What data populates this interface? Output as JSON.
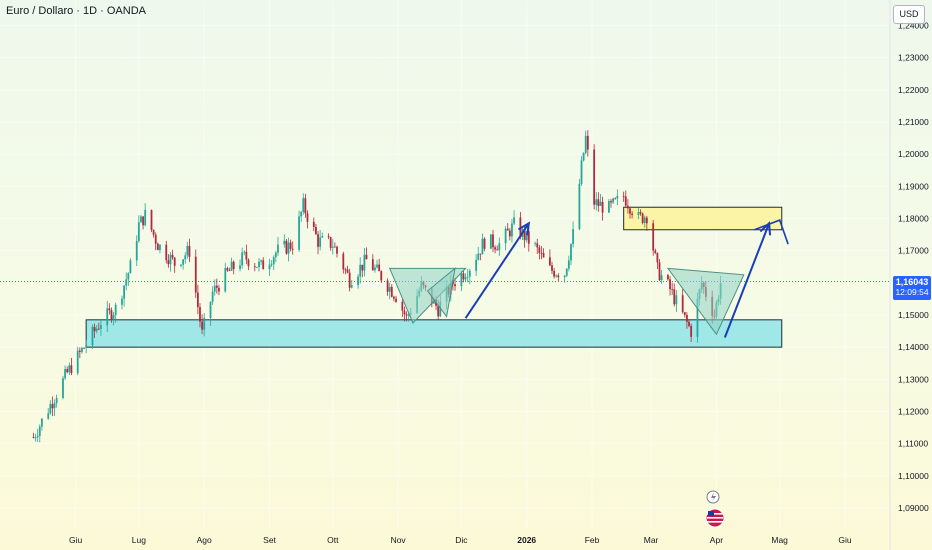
{
  "symbol": "Euro / Dollaro · 1D · OANDA",
  "currency": "USD",
  "last_price": "1,16043",
  "countdown": "12:09:54",
  "colors": {
    "up": "#26a69a",
    "down": "#b2283d",
    "support_zone": "#a0e7e7",
    "resistance_zone": "#fbf3a6",
    "arrow": "#1a3fb5",
    "triangle": "#8fd4c4",
    "price_tag": "#2962ff"
  },
  "chart_data": {
    "type": "candlestick",
    "title": "Euro / Dollaro · 1D · OANDA",
    "ylim": [
      1.085,
      1.245
    ],
    "y_ticks": [
      {
        "value": 1.24,
        "label": "1,24000"
      },
      {
        "value": 1.23,
        "label": "1,23000"
      },
      {
        "value": 1.22,
        "label": "1,22000"
      },
      {
        "value": 1.21,
        "label": "1,21000"
      },
      {
        "value": 1.2,
        "label": "1,20000"
      },
      {
        "value": 1.19,
        "label": "1,19000"
      },
      {
        "value": 1.18,
        "label": "1,18000"
      },
      {
        "value": 1.17,
        "label": "1,17000"
      },
      {
        "value": 1.15,
        "label": "1,15000"
      },
      {
        "value": 1.14,
        "label": "1,14000"
      },
      {
        "value": 1.13,
        "label": "1,13000"
      },
      {
        "value": 1.12,
        "label": "1,12000"
      },
      {
        "value": 1.11,
        "label": "1,11000"
      },
      {
        "value": 1.1,
        "label": "1,10000"
      },
      {
        "value": 1.09,
        "label": "1,09000"
      }
    ],
    "x_ticks": [
      {
        "date": "2025-06-01",
        "label": "Giu"
      },
      {
        "date": "2025-07-01",
        "label": "Lug"
      },
      {
        "date": "2025-08-01",
        "label": "Ago"
      },
      {
        "date": "2025-09-01",
        "label": "Set"
      },
      {
        "date": "2025-10-01",
        "label": "Ott"
      },
      {
        "date": "2025-11-01",
        "label": "Nov"
      },
      {
        "date": "2025-12-01",
        "label": "Dic"
      },
      {
        "date": "2026-01-01",
        "label": "2026",
        "bold": true
      },
      {
        "date": "2026-02-01",
        "label": "Feb"
      },
      {
        "date": "2026-03-01",
        "label": "Mar"
      },
      {
        "date": "2026-04-01",
        "label": "Apr"
      },
      {
        "date": "2026-05-01",
        "label": "Mag"
      },
      {
        "date": "2026-06-01",
        "label": "Giu"
      }
    ],
    "close_path": [
      [
        "2025-05-12",
        1.112
      ],
      [
        "2025-05-20",
        1.122
      ],
      [
        "2025-05-28",
        1.132
      ],
      [
        "2025-06-05",
        1.14
      ],
      [
        "2025-06-13",
        1.148
      ],
      [
        "2025-06-20",
        1.152
      ],
      [
        "2025-06-27",
        1.165
      ],
      [
        "2025-07-01",
        1.178
      ],
      [
        "2025-07-04",
        1.181
      ],
      [
        "2025-07-10",
        1.172
      ],
      [
        "2025-07-18",
        1.166
      ],
      [
        "2025-07-25",
        1.17
      ],
      [
        "2025-07-31",
        1.144
      ],
      [
        "2025-08-05",
        1.157
      ],
      [
        "2025-08-12",
        1.163
      ],
      [
        "2025-08-20",
        1.168
      ],
      [
        "2025-08-28",
        1.165
      ],
      [
        "2025-09-05",
        1.17
      ],
      [
        "2025-09-12",
        1.172
      ],
      [
        "2025-09-17",
        1.184
      ],
      [
        "2025-09-24",
        1.173
      ],
      [
        "2025-10-01",
        1.172
      ],
      [
        "2025-10-09",
        1.161
      ],
      [
        "2025-10-17",
        1.167
      ],
      [
        "2025-10-24",
        1.162
      ],
      [
        "2025-10-31",
        1.156
      ],
      [
        "2025-11-05",
        1.149
      ],
      [
        "2025-11-12",
        1.159
      ],
      [
        "2025-11-20",
        1.152
      ],
      [
        "2025-11-27",
        1.16
      ],
      [
        "2025-12-05",
        1.165
      ],
      [
        "2025-12-12",
        1.173
      ],
      [
        "2025-12-19",
        1.172
      ],
      [
        "2025-12-26",
        1.178
      ],
      [
        "2026-01-05",
        1.171
      ],
      [
        "2026-01-12",
        1.164
      ],
      [
        "2026-01-19",
        1.163
      ],
      [
        "2026-01-23",
        1.175
      ],
      [
        "2026-01-27",
        1.196
      ],
      [
        "2026-01-29",
        1.205
      ],
      [
        "2026-02-02",
        1.185
      ],
      [
        "2026-02-09",
        1.183
      ],
      [
        "2026-02-16",
        1.187
      ],
      [
        "2026-02-23",
        1.18
      ],
      [
        "2026-02-27",
        1.181
      ],
      [
        "2026-03-04",
        1.164
      ],
      [
        "2026-03-10",
        1.158
      ],
      [
        "2026-03-16",
        1.15
      ],
      [
        "2026-03-20",
        1.145
      ],
      [
        "2026-03-25",
        1.16
      ],
      [
        "2026-03-31",
        1.15
      ],
      [
        "2026-04-03",
        1.16
      ]
    ],
    "zones": [
      {
        "name": "support",
        "from": "2025-06-06",
        "to": "2026-05-02",
        "low": 1.14,
        "high": 1.1485
      },
      {
        "name": "resistance",
        "from": "2026-02-16",
        "to": "2026-05-02",
        "low": 1.1765,
        "high": 1.1835
      }
    ],
    "triangles": [
      [
        [
          "2025-10-28",
          1.1645
        ],
        [
          "2025-12-03",
          1.1645
        ],
        [
          "2025-11-08",
          1.1475
        ]
      ],
      [
        [
          "2025-11-28",
          1.1645
        ],
        [
          "2025-11-24",
          1.1495
        ],
        [
          "2025-11-15",
          1.1575
        ]
      ],
      [
        [
          "2026-03-09",
          1.1645
        ],
        [
          "2026-04-14",
          1.1625
        ],
        [
          "2026-04-01",
          1.144
        ]
      ]
    ],
    "arrows": [
      [
        [
          "2025-12-03",
          1.149
        ],
        [
          "2026-01-02",
          1.1785
        ]
      ],
      [
        [
          "2026-04-05",
          1.143
        ],
        [
          "2026-04-26",
          1.1785
        ]
      ]
    ],
    "zigzag": [
      [
        "2026-04-19",
        1.1765
      ],
      [
        "2026-05-01",
        1.1795
      ],
      [
        "2026-05-05",
        1.172
      ]
    ],
    "grid": true,
    "last_price_line": 1.16043
  }
}
